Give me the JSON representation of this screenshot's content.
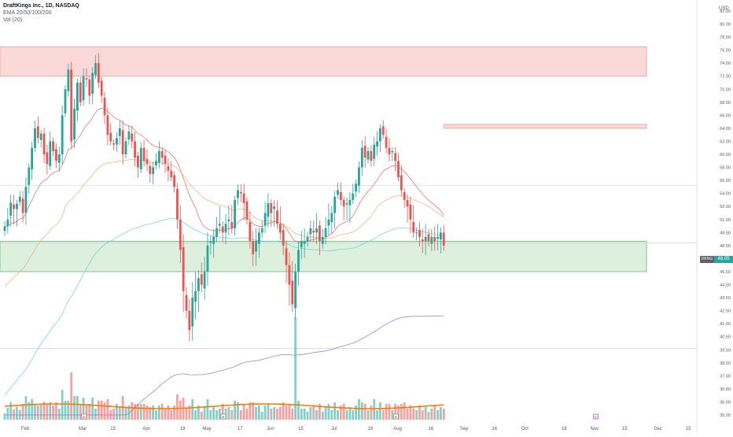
{
  "legend": {
    "title": "DraftKings Inc., 1D, NASDAQ",
    "ema": "EMA 20/50/100/200",
    "vol": "Vol (20)"
  },
  "price_axis": {
    "currency": "USD",
    "current_symbol": "DKNG",
    "current_price": "48.05"
  },
  "colors": {
    "up": "#26a69a",
    "down": "#ef5350",
    "ema20": "#ef5350",
    "ema50": "#f5a65b",
    "ema100": "#4dd0e1",
    "ema200": "#7b68ee",
    "resist": "#ef9a9a",
    "support": "#66bb6a",
    "vol_ma": "#f57c00"
  },
  "chart_data": {
    "type": "candlestick",
    "title": "DraftKings Inc., 1D, NASDAQ",
    "y_ticks": [
      "82.00",
      "80.00",
      "78.00",
      "76.00",
      "74.00",
      "72.00",
      "70.00",
      "68.00",
      "66.00",
      "64.00",
      "62.00",
      "60.00",
      "58.00",
      "56.00",
      "54.00",
      "52.00",
      "51.00",
      "49.50",
      "48.00",
      "46.50",
      "45.50",
      "44.50",
      "43.50",
      "42.50",
      "41.50",
      "40.50",
      "39.50",
      "38.50",
      "37.60",
      "36.80",
      "36.00",
      "35.20"
    ],
    "y_scale": "log",
    "x_labels": [
      {
        "label": "Feb",
        "day": 0
      },
      {
        "label": "Mar",
        "day": 19
      },
      {
        "label": "15",
        "day": 29
      },
      {
        "label": "Apr",
        "day": 40
      },
      {
        "label": "19",
        "day": 52
      },
      {
        "label": "May",
        "day": 60
      },
      {
        "label": "17",
        "day": 71
      },
      {
        "label": "Jun",
        "day": 81
      },
      {
        "label": "15",
        "day": 91
      },
      {
        "label": "Jul",
        "day": 102
      },
      {
        "label": "19",
        "day": 114
      },
      {
        "label": "Aug",
        "day": 123
      },
      {
        "label": "16",
        "day": 134
      },
      {
        "label": "Sep",
        "day": 145
      },
      {
        "label": "16",
        "day": 155
      },
      {
        "label": "Oct",
        "day": 165
      },
      {
        "label": "18",
        "day": 178
      },
      {
        "label": "Nov",
        "day": 188
      },
      {
        "label": "15",
        "day": 198
      },
      {
        "label": "Dec",
        "day": 209
      },
      {
        "label": "15",
        "day": 219
      }
    ],
    "resistance_zones": [
      {
        "low": 72.0,
        "high": 76.5
      },
      {
        "low": 64.0,
        "high": 64.6
      }
    ],
    "support_zone": {
      "low": 45.5,
      "high": 48.5
    },
    "horizontal_lines": [
      55.2,
      48.3,
      39.6
    ],
    "event_markers": [
      {
        "day": 21,
        "label": "E"
      },
      {
        "day": 67,
        "label": "E"
      },
      {
        "day": 124,
        "label": "E"
      },
      {
        "day": 190,
        "label": "E"
      }
    ],
    "closes": [
      50.2,
      51.0,
      52.6,
      51.8,
      52.4,
      53.5,
      51.5,
      55.0,
      58.0,
      61.0,
      64.0,
      62.5,
      63.2,
      60.0,
      58.5,
      62.0,
      60.5,
      59.0,
      60.0,
      66.0,
      70.0,
      73.0,
      62.0,
      67.0,
      71.0,
      68.0,
      72.0,
      71.5,
      69.0,
      72.5,
      74.0,
      71.0,
      69.0,
      66.0,
      63.0,
      62.0,
      61.5,
      62.5,
      64.0,
      60.0,
      62.0,
      63.5,
      62.0,
      59.5,
      58.0,
      61.0,
      59.0,
      58.5,
      57.0,
      58.0,
      59.0,
      60.5,
      59.5,
      58.5,
      57.5,
      56.5,
      55.0,
      51.0,
      47.5,
      44.0,
      42.5,
      41.0,
      43.5,
      44.0,
      45.0,
      44.5,
      45.5,
      48.0,
      48.5,
      49.0,
      50.0,
      50.5,
      49.5,
      50.5,
      51.0,
      50.0,
      53.0,
      54.5,
      54.0,
      52.5,
      51.0,
      48.5,
      47.0,
      48.5,
      49.5,
      50.0,
      51.5,
      52.5,
      51.5,
      52.0,
      50.5,
      49.5,
      48.0,
      46.0,
      44.5,
      43.0,
      45.5,
      47.5,
      48.5,
      48.5,
      49.0,
      50.0,
      49.5,
      50.0,
      48.5,
      49.0,
      50.0,
      51.0,
      51.5,
      53.5,
      54.5,
      53.0,
      52.0,
      52.5,
      53.0,
      54.0,
      55.5,
      58.0,
      61.0,
      59.5,
      60.5,
      59.0,
      61.5,
      62.0,
      64.0,
      63.0,
      61.0,
      60.0,
      60.5,
      59.0,
      56.5,
      54.5,
      53.0,
      52.0,
      51.0,
      49.5,
      49.5,
      49.0,
      48.5,
      49.0,
      48.5,
      49.0,
      48.5,
      49.0,
      49.5,
      48.0
    ],
    "volume_ma_relative": "flat, roughly 25-30% of max volume bar",
    "last_price": 48.05
  }
}
